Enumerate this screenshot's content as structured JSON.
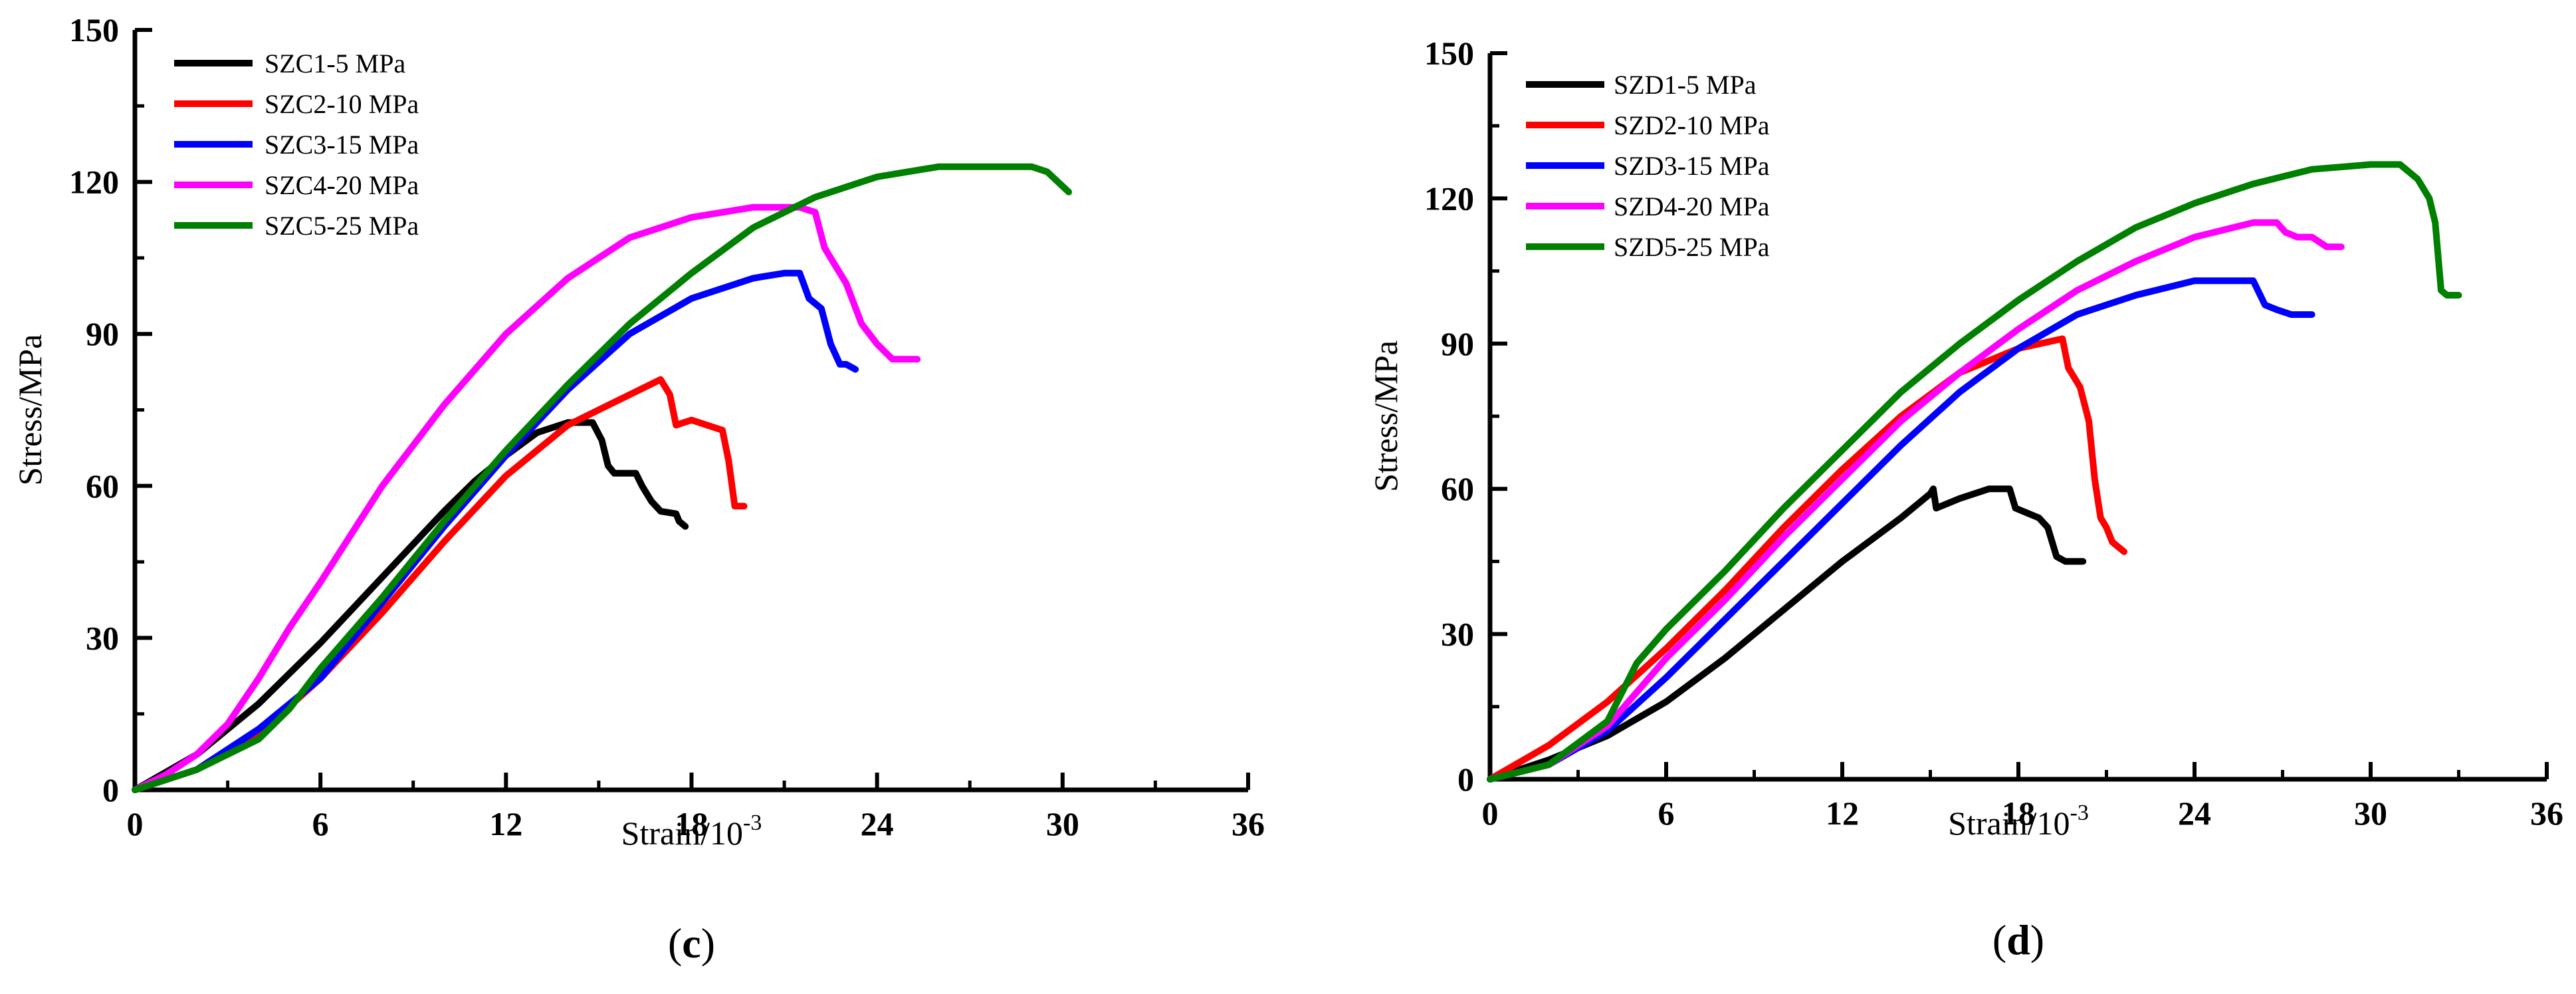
{
  "chart_data": [
    {
      "type": "line",
      "panel_label": "c",
      "xlabel_main": "Strain/10",
      "xlabel_exp": "-3",
      "ylabel": "Stress/MPa",
      "xlim": [
        0,
        36
      ],
      "ylim": [
        0,
        150
      ],
      "xticks": [
        0,
        6,
        12,
        18,
        24,
        30,
        36
      ],
      "yticks": [
        0,
        30,
        60,
        90,
        120,
        150
      ],
      "legend_position": "top-left",
      "series": [
        {
          "name": "SZC1-5 MPa",
          "color": "#000000",
          "x": [
            0,
            2,
            4,
            6,
            8,
            10,
            11,
            12,
            13,
            14,
            14.8,
            15.1,
            15.3,
            15.5,
            16.2,
            16.4,
            16.7,
            17.0,
            17.5,
            17.6,
            17.8
          ],
          "y": [
            0,
            7,
            17,
            29,
            42,
            55,
            61,
            66,
            70.5,
            72.5,
            72.5,
            69,
            64,
            62.5,
            62.5,
            60,
            57,
            55,
            54.5,
            53,
            52
          ]
        },
        {
          "name": "SZC2-10 MPa",
          "color": "#ff0000",
          "x": [
            0,
            2,
            4,
            6,
            8,
            10,
            12,
            14,
            16,
            17,
            17.3,
            17.5,
            18,
            18.5,
            19.0,
            19.2,
            19.4,
            19.7
          ],
          "y": [
            0,
            4,
            11,
            22,
            35,
            49,
            62,
            72,
            78,
            81,
            78,
            72,
            73,
            72,
            71,
            65,
            56,
            56
          ]
        },
        {
          "name": "SZC3-15 MPa",
          "color": "#0000ff",
          "x": [
            0,
            2,
            4,
            6,
            8,
            10,
            12,
            14,
            16,
            18,
            20,
            21,
            21.5,
            21.8,
            22.2,
            22.5,
            22.8,
            23.0,
            23.3
          ],
          "y": [
            0,
            4,
            12,
            22,
            37,
            52,
            66,
            79,
            90,
            97,
            101,
            102,
            102,
            97,
            95,
            88,
            84,
            84,
            83
          ]
        },
        {
          "name": "SZC4-20 MPa",
          "color": "#ff00ff",
          "x": [
            0,
            1,
            2,
            3,
            4,
            5,
            6,
            8,
            10,
            12,
            14,
            16,
            18,
            20,
            21.5,
            22,
            22.3,
            22.6,
            23,
            23.5,
            24,
            24.5,
            25.3
          ],
          "y": [
            0,
            3,
            7,
            13,
            22,
            32,
            41,
            60,
            76,
            90,
            101,
            109,
            113,
            115,
            115,
            114,
            107,
            104,
            100,
            92,
            88,
            85,
            85
          ]
        },
        {
          "name": "SZC5-25 MPa",
          "color": "#008000",
          "x": [
            0,
            2,
            4,
            5,
            6,
            8,
            10,
            12,
            14,
            16,
            18,
            20,
            22,
            24,
            26,
            28,
            29,
            29.5,
            30.2
          ],
          "y": [
            0,
            4,
            10,
            16,
            24,
            38,
            53,
            67,
            80,
            92,
            102,
            111,
            117,
            121,
            123,
            123,
            123,
            122,
            118
          ]
        }
      ]
    },
    {
      "type": "line",
      "panel_label": "d",
      "xlabel_main": "Strain/10",
      "xlabel_exp": "-3",
      "ylabel": "Stress/MPa",
      "xlim": [
        0,
        36
      ],
      "ylim": [
        0,
        150
      ],
      "xticks": [
        0,
        6,
        12,
        18,
        24,
        30,
        36
      ],
      "yticks": [
        0,
        30,
        60,
        90,
        120,
        150
      ],
      "legend_position": "top-left",
      "series": [
        {
          "name": "SZD1-5 MPa",
          "color": "#000000",
          "x": [
            0,
            2,
            4,
            6,
            8,
            10,
            12,
            14,
            15,
            15.1,
            15.2,
            16,
            17,
            17.7,
            17.9,
            18.3,
            18.7,
            19.0,
            19.3,
            19.6,
            20.2
          ],
          "y": [
            0,
            4,
            9,
            16,
            25,
            35,
            45,
            54,
            59,
            60,
            56,
            58,
            60,
            60,
            56,
            55,
            54,
            52,
            46,
            45,
            45
          ]
        },
        {
          "name": "SZD2-10 MPa",
          "color": "#ff0000",
          "x": [
            0,
            2,
            4,
            6,
            8,
            10,
            12,
            14,
            16,
            18,
            19.5,
            19.7,
            20.1,
            20.4,
            20.6,
            20.8,
            21.0,
            21.2,
            21.6
          ],
          "y": [
            0,
            7,
            16,
            27,
            39,
            52,
            64,
            75,
            84,
            89,
            91,
            85,
            81,
            74,
            62,
            54,
            52,
            49,
            47
          ]
        },
        {
          "name": "SZD3-15 MPa",
          "color": "#0000ff",
          "x": [
            0,
            2,
            4,
            6,
            8,
            10,
            12,
            14,
            16,
            18,
            20,
            22,
            24,
            26,
            26.4,
            26.8,
            27.3,
            28.0
          ],
          "y": [
            0,
            3,
            10,
            21,
            33,
            45,
            57,
            69,
            80,
            89,
            96,
            100,
            103,
            103,
            98,
            97,
            96,
            96
          ]
        },
        {
          "name": "SZD4-20 MPa",
          "color": "#ff00ff",
          "x": [
            0,
            2,
            4,
            6,
            8,
            10,
            12,
            14,
            16,
            18,
            20,
            22,
            24,
            26,
            26.8,
            27.1,
            27.5,
            28.0,
            28.5,
            29.0
          ],
          "y": [
            0,
            3,
            11,
            25,
            37,
            50,
            62,
            74,
            84,
            93,
            101,
            107,
            112,
            115,
            115,
            113,
            112,
            112,
            110,
            110
          ]
        },
        {
          "name": "SZD5-25 MPa",
          "color": "#008000",
          "x": [
            0,
            2,
            4,
            5,
            6,
            8,
            10,
            12,
            14,
            16,
            18,
            20,
            22,
            24,
            26,
            28,
            30,
            31,
            31.6,
            32,
            32.2,
            32.4,
            32.6,
            33.0
          ],
          "y": [
            0,
            3,
            12,
            24,
            31,
            43,
            56,
            68,
            80,
            90,
            99,
            107,
            114,
            119,
            123,
            126,
            127,
            127,
            124,
            120,
            115,
            101,
            100,
            100
          ]
        }
      ]
    }
  ]
}
